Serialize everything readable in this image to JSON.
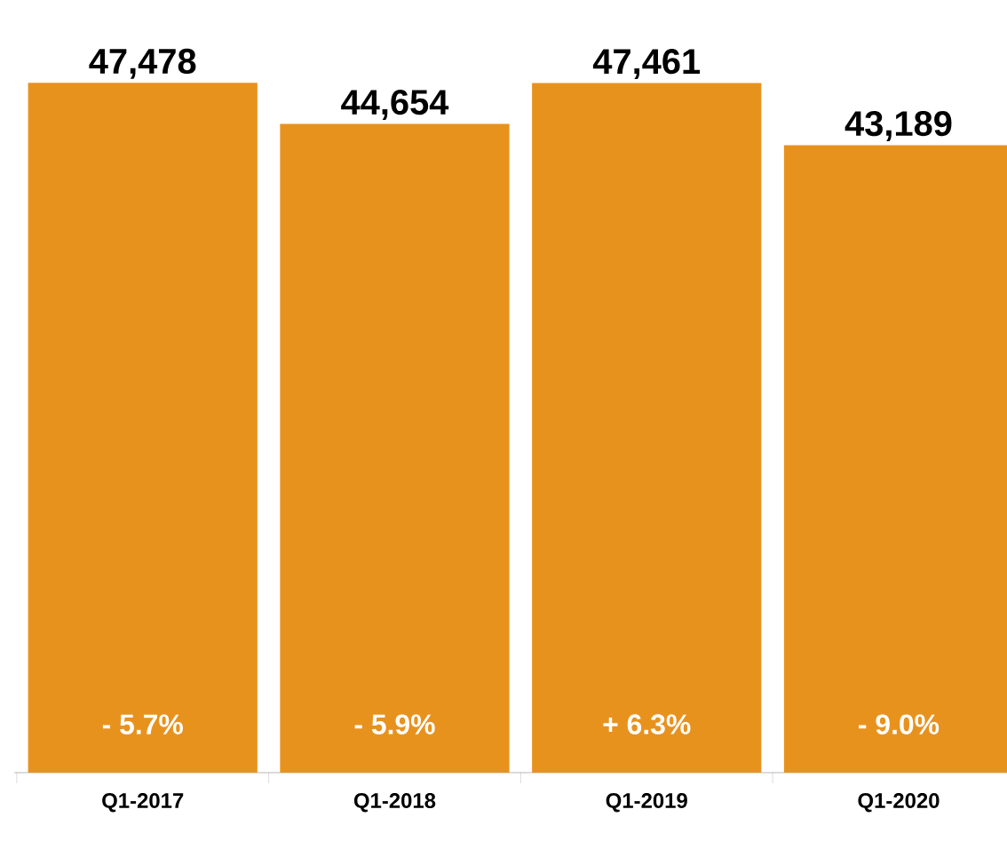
{
  "chart_data": {
    "type": "bar",
    "categories": [
      "Q1-2017",
      "Q1-2018",
      "Q1-2019",
      "Q1-2020"
    ],
    "values": [
      47478,
      44654,
      47461,
      43189
    ],
    "value_labels": [
      "47,478",
      "44,654",
      "47,461",
      "43,189"
    ],
    "color": "#e8921e",
    "annotations": [
      "- 5.7%",
      "- 5.9%",
      "+ 6.3%",
      "- 9.0%"
    ]
  }
}
